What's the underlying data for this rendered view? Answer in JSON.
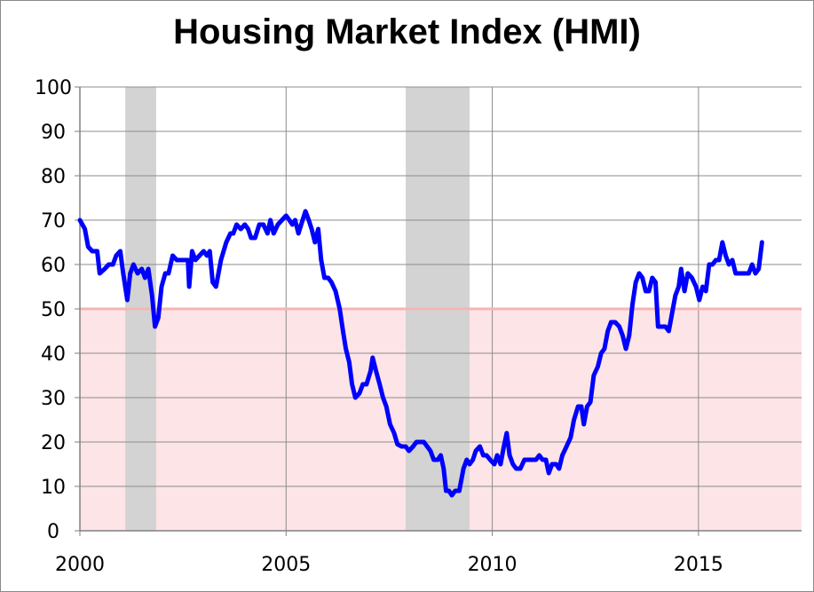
{
  "chart_data": {
    "type": "line",
    "title": "Housing Market Index (HMI)",
    "xlabel": "",
    "ylabel": "",
    "xlim": [
      2000,
      2017.5
    ],
    "ylim": [
      0,
      100
    ],
    "x_ticks": [
      "2000",
      "2005",
      "2010",
      "2015"
    ],
    "x_tick_values": [
      2000,
      2005,
      2010,
      2015
    ],
    "y_ticks": [
      "0",
      "10",
      "20",
      "30",
      "40",
      "50",
      "60",
      "70",
      "80",
      "90",
      "100"
    ],
    "y_tick_values": [
      0,
      10,
      20,
      30,
      40,
      50,
      60,
      70,
      80,
      90,
      100
    ],
    "grid": true,
    "threshold": {
      "value": 50,
      "color": "#f4b4b8",
      "below_fill": "#fde4e6"
    },
    "shaded_periods": [
      {
        "start": 2001.1,
        "end": 2001.85,
        "color": "#d3d3d3"
      },
      {
        "start": 2007.9,
        "end": 2009.45,
        "color": "#d3d3d3"
      }
    ],
    "series": [
      {
        "color": "#0000ff",
        "points": [
          [
            2000.0,
            70
          ],
          [
            2000.12,
            68
          ],
          [
            2000.2,
            64
          ],
          [
            2000.3,
            63
          ],
          [
            2000.42,
            63
          ],
          [
            2000.48,
            58
          ],
          [
            2000.6,
            59
          ],
          [
            2000.7,
            60
          ],
          [
            2000.8,
            60
          ],
          [
            2000.88,
            62
          ],
          [
            2000.98,
            63
          ],
          [
            2001.05,
            58
          ],
          [
            2001.15,
            52
          ],
          [
            2001.22,
            58
          ],
          [
            2001.3,
            60
          ],
          [
            2001.4,
            58
          ],
          [
            2001.5,
            59
          ],
          [
            2001.58,
            57
          ],
          [
            2001.66,
            59
          ],
          [
            2001.75,
            53
          ],
          [
            2001.82,
            46
          ],
          [
            2001.9,
            48
          ],
          [
            2001.98,
            55
          ],
          [
            2002.07,
            58
          ],
          [
            2002.15,
            58
          ],
          [
            2002.25,
            62
          ],
          [
            2002.35,
            61
          ],
          [
            2002.45,
            61
          ],
          [
            2002.55,
            61
          ],
          [
            2002.62,
            61
          ],
          [
            2002.65,
            55
          ],
          [
            2002.72,
            63
          ],
          [
            2002.8,
            61
          ],
          [
            2002.9,
            62
          ],
          [
            2003.0,
            63
          ],
          [
            2003.08,
            62
          ],
          [
            2003.15,
            63
          ],
          [
            2003.22,
            56
          ],
          [
            2003.3,
            55
          ],
          [
            2003.42,
            61
          ],
          [
            2003.55,
            65
          ],
          [
            2003.65,
            67
          ],
          [
            2003.72,
            67
          ],
          [
            2003.8,
            69
          ],
          [
            2003.9,
            68
          ],
          [
            2004.0,
            69
          ],
          [
            2004.08,
            68
          ],
          [
            2004.15,
            66
          ],
          [
            2004.25,
            66
          ],
          [
            2004.35,
            69
          ],
          [
            2004.45,
            69
          ],
          [
            2004.55,
            67
          ],
          [
            2004.62,
            70
          ],
          [
            2004.7,
            67
          ],
          [
            2004.8,
            69
          ],
          [
            2004.9,
            70
          ],
          [
            2005.0,
            71
          ],
          [
            2005.08,
            70
          ],
          [
            2005.15,
            69
          ],
          [
            2005.22,
            70
          ],
          [
            2005.3,
            67
          ],
          [
            2005.4,
            70
          ],
          [
            2005.47,
            72
          ],
          [
            2005.55,
            70
          ],
          [
            2005.62,
            68
          ],
          [
            2005.7,
            65
          ],
          [
            2005.78,
            68
          ],
          [
            2005.85,
            61
          ],
          [
            2005.93,
            57
          ],
          [
            2006.02,
            57
          ],
          [
            2006.1,
            56
          ],
          [
            2006.2,
            54
          ],
          [
            2006.3,
            50
          ],
          [
            2006.38,
            45
          ],
          [
            2006.45,
            41
          ],
          [
            2006.53,
            38
          ],
          [
            2006.6,
            33
          ],
          [
            2006.68,
            30
          ],
          [
            2006.78,
            31
          ],
          [
            2006.86,
            33
          ],
          [
            2006.95,
            33
          ],
          [
            2007.05,
            36
          ],
          [
            2007.1,
            39
          ],
          [
            2007.18,
            36
          ],
          [
            2007.27,
            33
          ],
          [
            2007.35,
            30
          ],
          [
            2007.43,
            28
          ],
          [
            2007.52,
            24
          ],
          [
            2007.62,
            22
          ],
          [
            2007.7,
            19.5
          ],
          [
            2007.8,
            19
          ],
          [
            2007.9,
            19
          ],
          [
            2007.98,
            18
          ],
          [
            2008.08,
            19
          ],
          [
            2008.16,
            20
          ],
          [
            2008.25,
            20
          ],
          [
            2008.34,
            20
          ],
          [
            2008.42,
            19
          ],
          [
            2008.5,
            18
          ],
          [
            2008.58,
            16
          ],
          [
            2008.68,
            16
          ],
          [
            2008.75,
            17
          ],
          [
            2008.82,
            14
          ],
          [
            2008.88,
            9
          ],
          [
            2008.95,
            9
          ],
          [
            2009.02,
            8
          ],
          [
            2009.1,
            9
          ],
          [
            2009.2,
            9
          ],
          [
            2009.3,
            14
          ],
          [
            2009.38,
            16
          ],
          [
            2009.45,
            15
          ],
          [
            2009.53,
            16
          ],
          [
            2009.6,
            18
          ],
          [
            2009.7,
            19
          ],
          [
            2009.78,
            17
          ],
          [
            2009.86,
            17
          ],
          [
            2009.95,
            16
          ],
          [
            2010.05,
            15
          ],
          [
            2010.12,
            17
          ],
          [
            2010.2,
            15
          ],
          [
            2010.28,
            19
          ],
          [
            2010.35,
            22
          ],
          [
            2010.42,
            17
          ],
          [
            2010.5,
            15
          ],
          [
            2010.58,
            14
          ],
          [
            2010.68,
            14
          ],
          [
            2010.78,
            16
          ],
          [
            2010.88,
            16
          ],
          [
            2010.98,
            16
          ],
          [
            2011.06,
            16
          ],
          [
            2011.14,
            17
          ],
          [
            2011.22,
            16
          ],
          [
            2011.3,
            16
          ],
          [
            2011.37,
            13
          ],
          [
            2011.45,
            15
          ],
          [
            2011.55,
            15
          ],
          [
            2011.62,
            14
          ],
          [
            2011.7,
            17
          ],
          [
            2011.8,
            19
          ],
          [
            2011.9,
            21
          ],
          [
            2011.98,
            25
          ],
          [
            2012.08,
            28
          ],
          [
            2012.16,
            28
          ],
          [
            2012.22,
            24
          ],
          [
            2012.3,
            28
          ],
          [
            2012.38,
            29
          ],
          [
            2012.46,
            35
          ],
          [
            2012.56,
            37
          ],
          [
            2012.64,
            40
          ],
          [
            2012.72,
            41
          ],
          [
            2012.8,
            45
          ],
          [
            2012.88,
            47
          ],
          [
            2012.98,
            47
          ],
          [
            2013.08,
            46
          ],
          [
            2013.16,
            44
          ],
          [
            2013.24,
            41
          ],
          [
            2013.32,
            44
          ],
          [
            2013.4,
            51
          ],
          [
            2013.48,
            56
          ],
          [
            2013.56,
            58
          ],
          [
            2013.64,
            57
          ],
          [
            2013.72,
            54
          ],
          [
            2013.8,
            54
          ],
          [
            2013.88,
            57
          ],
          [
            2013.96,
            56
          ],
          [
            2014.02,
            46
          ],
          [
            2014.12,
            46
          ],
          [
            2014.2,
            46
          ],
          [
            2014.28,
            45
          ],
          [
            2014.36,
            49
          ],
          [
            2014.44,
            53
          ],
          [
            2014.52,
            55
          ],
          [
            2014.58,
            59
          ],
          [
            2014.66,
            54
          ],
          [
            2014.74,
            58
          ],
          [
            2014.84,
            57
          ],
          [
            2014.94,
            55
          ],
          [
            2015.02,
            52
          ],
          [
            2015.1,
            55
          ],
          [
            2015.18,
            54
          ],
          [
            2015.26,
            60
          ],
          [
            2015.34,
            60
          ],
          [
            2015.42,
            61
          ],
          [
            2015.5,
            61
          ],
          [
            2015.58,
            65
          ],
          [
            2015.66,
            62
          ],
          [
            2015.74,
            60
          ],
          [
            2015.82,
            61
          ],
          [
            2015.9,
            58
          ],
          [
            2015.98,
            58
          ],
          [
            2016.06,
            58
          ],
          [
            2016.14,
            58
          ],
          [
            2016.22,
            58
          ],
          [
            2016.3,
            60
          ],
          [
            2016.38,
            58
          ],
          [
            2016.46,
            59
          ],
          [
            2016.54,
            65
          ]
        ]
      }
    ]
  }
}
